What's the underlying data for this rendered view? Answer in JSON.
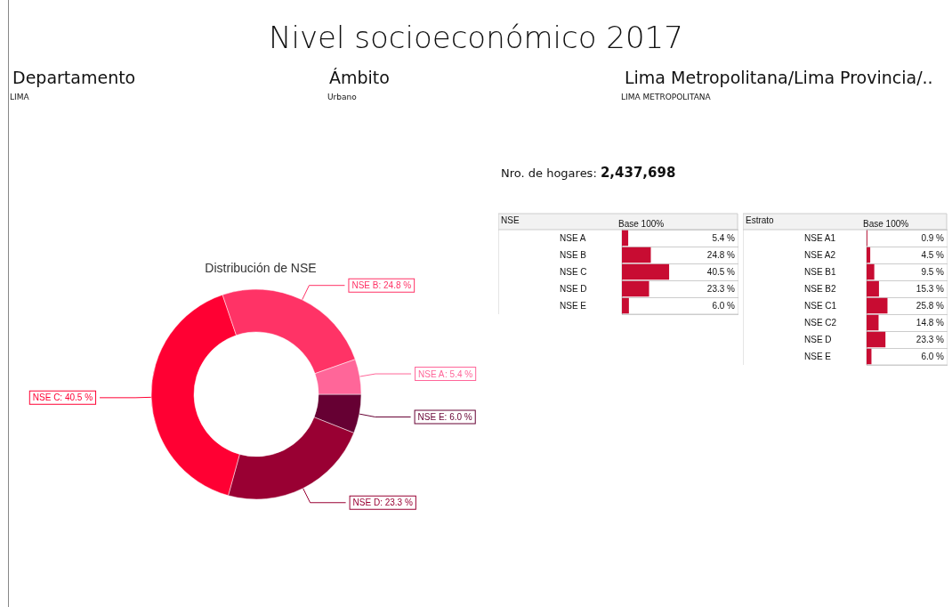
{
  "chart_data": [
    {
      "type": "other",
      "title": "Nivel socioeconómico 2017",
      "annotations": [
        "Departamento",
        "LIMA",
        "Ámbito",
        "Urbano",
        "Lima Metropolitana/Lima Provincia/..",
        "LIMA METROPOLITANA",
        "Nro. de hogares:",
        "2,437,698"
      ]
    },
    {
      "type": "donut",
      "title": "Distribución de NSE",
      "categories": [
        "NSE E",
        "NSE D",
        "NSE C",
        "NSE B",
        "NSE A"
      ],
      "values": [
        6.0,
        23.3,
        40.5,
        24.8,
        5.4
      ],
      "colors": [
        "#660033",
        "#990033",
        "#ff0033",
        "#ff3366",
        "#ff6699"
      ],
      "value_labels": [
        ": 6.0 %",
        ": 23.3 %",
        ": 40.5 %",
        ": 24.8 %",
        ": 5.4 %"
      ]
    },
    {
      "type": "bar",
      "orientation": "horizontal",
      "ylabel": "NSE",
      "xlabel": "Base 100%",
      "categories": [
        "NSE A",
        "NSE B",
        "NSE C",
        "NSE D",
        "NSE E"
      ],
      "values": [
        5.4,
        24.8,
        40.5,
        23.3,
        6.0
      ],
      "color": "#c80c32",
      "xlim": [
        0,
        100
      ],
      "tick_labels": "y",
      "value_labels": [
        "5.4 %",
        "24.8 %",
        "40.5 %",
        "23.3 %",
        "6.0 %"
      ]
    },
    {
      "type": "bar",
      "orientation": "horizontal",
      "ylabel": "Estrato",
      "xlabel": "Base 100%",
      "categories": [
        "NSE A1",
        "NSE A2",
        "NSE B1",
        "NSE B2",
        "NSE C1",
        "NSE C2",
        "NSE D",
        "NSE E"
      ],
      "values": [
        0.9,
        4.5,
        9.5,
        15.3,
        25.8,
        14.8,
        23.3,
        6.0
      ],
      "color": "#c80c32",
      "xlim": [
        0,
        100
      ],
      "tick_labels": "y",
      "value_labels": [
        "0.9 %",
        "4.5 %",
        "9.5 %",
        "15.3 %",
        "25.8 %",
        "14.8 %",
        "23.3 %",
        "6.0 %"
      ]
    }
  ]
}
